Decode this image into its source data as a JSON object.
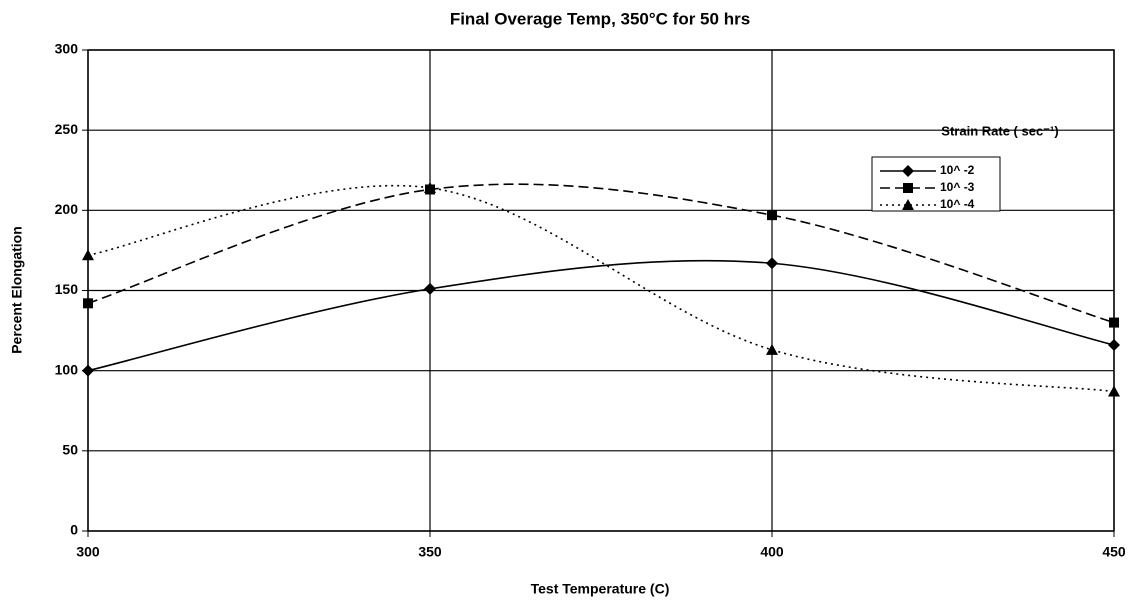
{
  "chart_data": {
    "type": "line",
    "title": "Final Overage Temp, 350°C for 50 hrs",
    "x_label": "Test Temperature (C)",
    "y_label": "Percent Elongation",
    "legend_title": "Strain Rate ( sec⁻¹)",
    "x": [
      300,
      350,
      400,
      450
    ],
    "series": [
      {
        "name": "10^ -2",
        "color": "#000000",
        "marker": "diamond",
        "dash": "solid",
        "values": [
          100,
          151,
          167,
          116
        ]
      },
      {
        "name": "10^ -3",
        "color": "#000000",
        "marker": "square",
        "dash": "dashed",
        "values": [
          142,
          213,
          197,
          130
        ]
      },
      {
        "name": "10^ -4",
        "color": "#000000",
        "marker": "triangle",
        "dash": "dotted",
        "values": [
          172,
          214,
          113,
          87
        ]
      }
    ],
    "xlim": [
      300,
      450
    ],
    "xticks": [
      300,
      350,
      400,
      450
    ],
    "ylim": [
      0,
      300
    ],
    "yticks": [
      0,
      50,
      100,
      150,
      200,
      250,
      300
    ],
    "grid": true,
    "legend": "upper right",
    "smooth": true
  }
}
